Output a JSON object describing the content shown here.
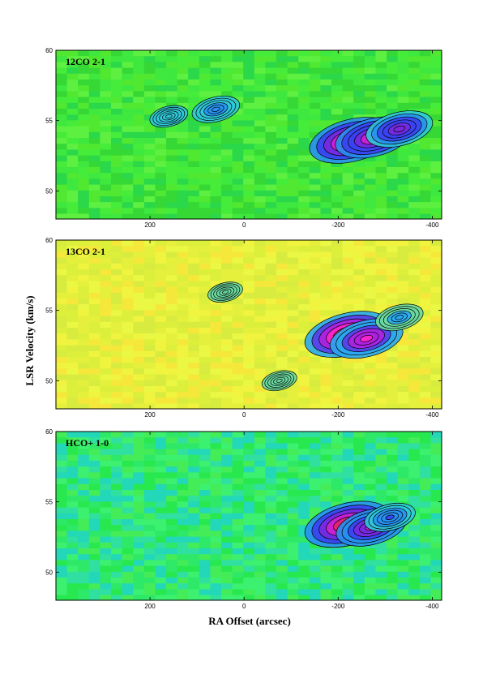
{
  "chart_data": [
    {
      "type": "heatmap",
      "title": "12CO 2-1",
      "x_range": [
        400,
        -420
      ],
      "y_range": [
        48,
        60
      ],
      "x_ticks": [
        200,
        0,
        -200,
        -400
      ],
      "x_tick_labels": [
        "200",
        "0",
        "-200",
        "-400"
      ],
      "y_ticks": [
        50,
        55,
        60
      ],
      "y_tick_labels": [
        "50",
        "55",
        "60"
      ],
      "background_color": "#3ee83e",
      "emission": [
        {
          "x": -230,
          "y": 53.6,
          "level": 1.0
        },
        {
          "x": -275,
          "y": 53.8,
          "level": 0.85
        },
        {
          "x": -330,
          "y": 54.4,
          "level": 0.7
        },
        {
          "x": 60,
          "y": 55.8,
          "level": 0.4
        },
        {
          "x": 160,
          "y": 55.3,
          "level": 0.25
        }
      ]
    },
    {
      "type": "heatmap",
      "title": "13CO 2-1",
      "x_range": [
        400,
        -420
      ],
      "y_range": [
        48,
        60
      ],
      "x_ticks": [
        200,
        0,
        -200,
        -400
      ],
      "x_tick_labels": [
        "200",
        "0",
        "-200",
        "-400"
      ],
      "y_ticks": [
        50,
        55,
        60
      ],
      "y_tick_labels": [
        "50",
        "55",
        "60"
      ],
      "background_color": "#e6f43c",
      "emission": [
        {
          "x": -220,
          "y": 53.3,
          "level": 1.0
        },
        {
          "x": -260,
          "y": 53.0,
          "level": 0.8
        },
        {
          "x": -330,
          "y": 54.5,
          "level": 0.4
        },
        {
          "x": 40,
          "y": 56.3,
          "level": 0.2
        },
        {
          "x": -75,
          "y": 50.0,
          "level": 0.2
        }
      ]
    },
    {
      "type": "heatmap",
      "title": "HCO+ 1-0",
      "x_range": [
        400,
        -420
      ],
      "y_range": [
        48,
        60
      ],
      "x_ticks": [
        200,
        0,
        -200,
        -400
      ],
      "x_tick_labels": [
        "200",
        "0",
        "-200",
        "-400"
      ],
      "y_ticks": [
        50,
        55,
        60
      ],
      "y_tick_labels": [
        "50",
        "55",
        "60"
      ],
      "background_color": "#2ee868",
      "emission": [
        {
          "x": -220,
          "y": 53.4,
          "level": 1.0
        },
        {
          "x": -270,
          "y": 53.2,
          "level": 0.75
        },
        {
          "x": -310,
          "y": 53.9,
          "level": 0.45
        }
      ]
    }
  ],
  "ylabel": "LSR Velocity (km/s)",
  "xlabel": "RA Offset (arcsec)"
}
